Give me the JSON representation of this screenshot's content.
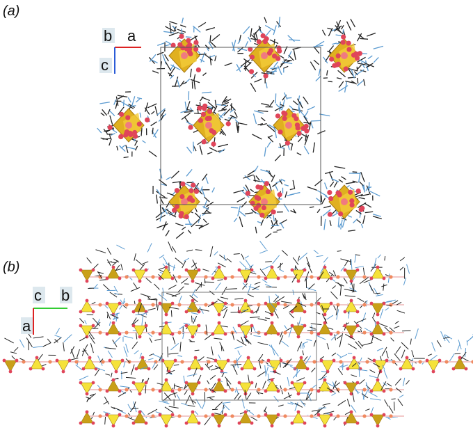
{
  "panels": [
    {
      "label": "(a)",
      "axes": {
        "origin": "b",
        "horizontal": "a",
        "vertical": "c"
      }
    },
    {
      "label": "(b)",
      "axes": {
        "origin": "c",
        "horizontal": "b",
        "vertical": "a"
      }
    }
  ]
}
